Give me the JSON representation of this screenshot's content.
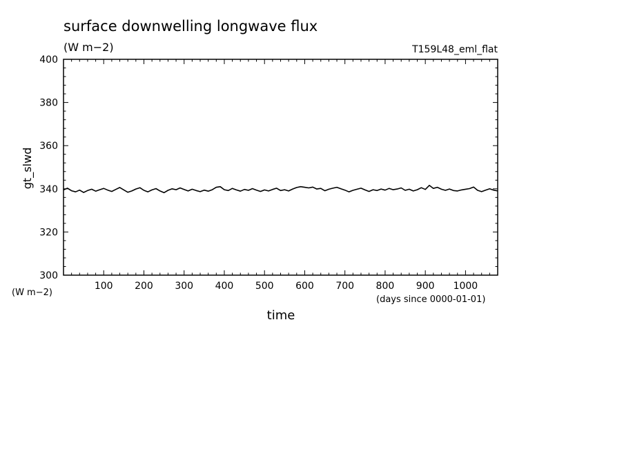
{
  "chart_data": {
    "type": "line",
    "title": "surface downwelling longwave flux",
    "subtitle": "(W m−2)",
    "run_label": "T159L48_eml_flat",
    "xlabel": "time",
    "x_units": "(days since 0000-01-01)",
    "ylabel": "gt_slwd",
    "y_units": "(W m−2)",
    "xlim": [
      0,
      1080
    ],
    "ylim": [
      300,
      400
    ],
    "x_ticks": [
      "100",
      "200",
      "300",
      "400",
      "500",
      "600",
      "700",
      "800",
      "900",
      "1000"
    ],
    "y_ticks": [
      "300",
      "320",
      "340",
      "360",
      "380",
      "400"
    ],
    "grid": false,
    "series": [
      {
        "x": [
          0,
          10,
          20,
          30,
          40,
          50,
          60,
          70,
          80,
          90,
          100,
          110,
          120,
          130,
          140,
          150,
          160,
          170,
          180,
          190,
          200,
          210,
          220,
          230,
          240,
          250,
          260,
          270,
          280,
          290,
          300,
          310,
          320,
          330,
          340,
          350,
          360,
          370,
          380,
          390,
          400,
          410,
          420,
          430,
          440,
          450,
          460,
          470,
          480,
          490,
          500,
          510,
          520,
          530,
          540,
          550,
          560,
          570,
          580,
          590,
          600,
          610,
          620,
          630,
          640,
          650,
          660,
          670,
          680,
          690,
          700,
          710,
          720,
          730,
          740,
          750,
          760,
          770,
          780,
          790,
          800,
          810,
          820,
          830,
          840,
          850,
          860,
          870,
          880,
          890,
          900,
          910,
          920,
          930,
          940,
          950,
          960,
          970,
          980,
          990,
          1000,
          1010,
          1020,
          1030,
          1040,
          1050,
          1060,
          1070,
          1080
        ],
        "y": [
          339.5,
          340.3,
          339.1,
          338.6,
          339.4,
          338.3,
          339.2,
          339.8,
          338.9,
          339.6,
          340.2,
          339.4,
          338.8,
          339.7,
          340.6,
          339.5,
          338.4,
          339.0,
          339.9,
          340.5,
          339.3,
          338.6,
          339.5,
          340.1,
          339.0,
          338.2,
          339.3,
          340.0,
          339.6,
          340.4,
          339.7,
          339.0,
          339.8,
          339.2,
          338.7,
          339.4,
          338.9,
          339.6,
          340.7,
          341.0,
          339.6,
          339.2,
          340.2,
          339.5,
          338.9,
          339.7,
          339.3,
          340.1,
          339.4,
          338.8,
          339.5,
          339.0,
          339.7,
          340.3,
          339.2,
          339.6,
          339.0,
          339.9,
          340.6,
          341.0,
          340.7,
          340.4,
          340.8,
          339.9,
          340.2,
          339.1,
          339.8,
          340.3,
          340.7,
          340.0,
          339.4,
          338.6,
          339.3,
          339.8,
          340.3,
          339.5,
          338.8,
          339.6,
          339.2,
          339.9,
          339.4,
          340.2,
          339.6,
          339.9,
          340.4,
          339.3,
          339.8,
          339.0,
          339.6,
          340.5,
          339.7,
          341.6,
          340.2,
          340.7,
          339.8,
          339.3,
          339.9,
          339.2,
          339.0,
          339.5,
          339.8,
          340.1,
          340.8,
          339.3,
          338.7,
          339.4,
          340.0,
          339.4,
          339.0
        ]
      }
    ]
  }
}
